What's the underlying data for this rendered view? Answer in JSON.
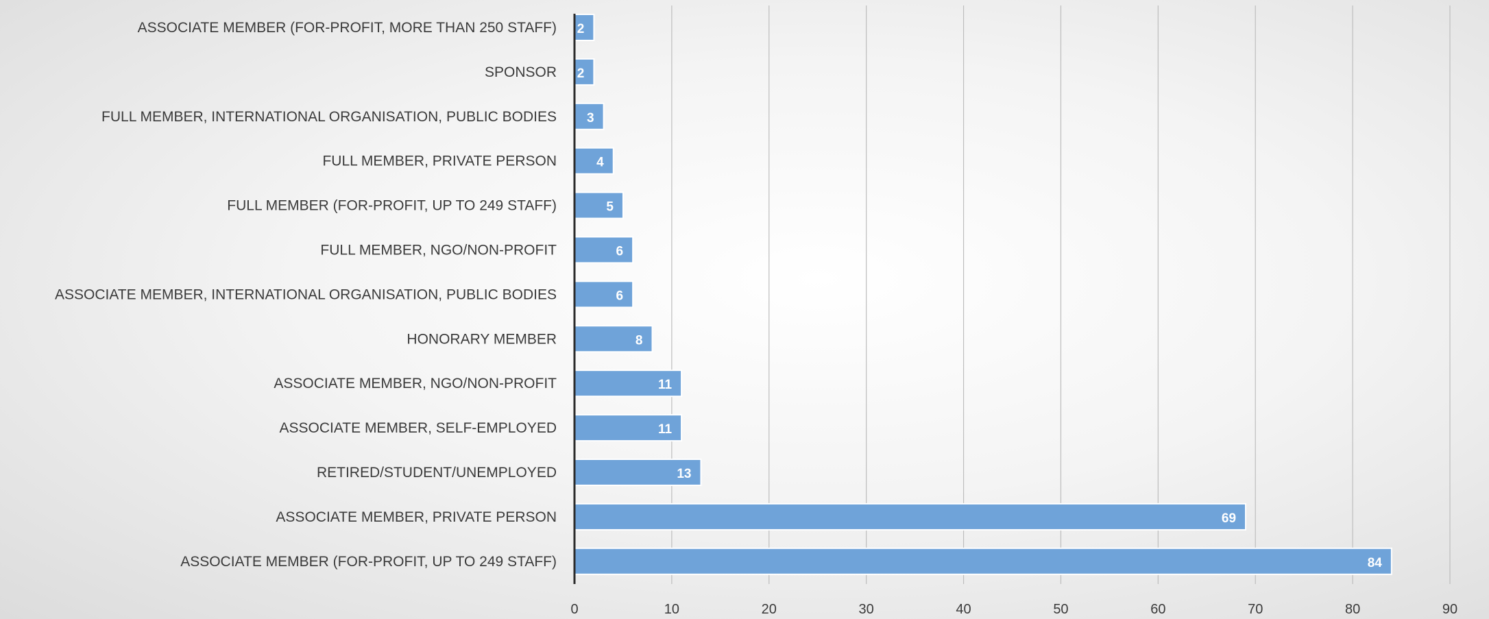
{
  "chart_data": {
    "type": "bar",
    "orientation": "horizontal",
    "categories": [
      "ASSOCIATE MEMBER (FOR-PROFIT, MORE THAN 250 STAFF)",
      "SPONSOR",
      "FULL MEMBER, INTERNATIONAL ORGANISATION, PUBLIC BODIES",
      "FULL MEMBER, PRIVATE PERSON",
      "FULL MEMBER (FOR-PROFIT, UP TO 249 STAFF)",
      "FULL MEMBER, NGO/NON-PROFIT",
      "ASSOCIATE MEMBER, INTERNATIONAL ORGANISATION, PUBLIC BODIES",
      "HONORARY MEMBER",
      "ASSOCIATE MEMBER, NGO/NON-PROFIT",
      "ASSOCIATE MEMBER, SELF-EMPLOYED",
      "RETIRED/STUDENT/UNEMPLOYED",
      "ASSOCIATE MEMBER, PRIVATE PERSON",
      "ASSOCIATE MEMBER (FOR-PROFIT, UP TO 249 STAFF)"
    ],
    "values": [
      2,
      2,
      3,
      4,
      5,
      6,
      6,
      8,
      11,
      11,
      13,
      69,
      84
    ],
    "data_labels": [
      "2",
      "2",
      "3",
      "4",
      "5",
      "6",
      "6",
      "8",
      "11",
      "11",
      "13",
      "69",
      "84"
    ],
    "xlim": [
      0,
      90
    ],
    "xticks": [
      "0",
      "10",
      "20",
      "30",
      "40",
      "50",
      "60",
      "70",
      "80",
      "90"
    ],
    "grid": true,
    "legend": "none",
    "bar_color": "#6fa3d9",
    "data_label_color": "#ffffff"
  }
}
